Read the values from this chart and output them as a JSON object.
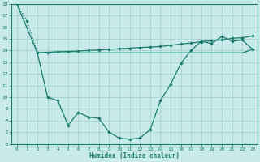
{
  "xlabel": "Humidex (Indice chaleur)",
  "line1_x": [
    0,
    1,
    2
  ],
  "line1_y": [
    18,
    16.5,
    13.8
  ],
  "line2_x": [
    0,
    2,
    3,
    4,
    5,
    6,
    7,
    8,
    9,
    10,
    11,
    12,
    13,
    14,
    15,
    16,
    17,
    18,
    19,
    20,
    21,
    22,
    23
  ],
  "line2_y": [
    18,
    13.8,
    10.0,
    9.7,
    7.6,
    8.7,
    8.3,
    8.2,
    7.0,
    6.5,
    6.4,
    6.5,
    7.2,
    9.7,
    11.1,
    12.9,
    14.0,
    14.8,
    14.6,
    15.2,
    14.8,
    14.9,
    14.1
  ],
  "line3_x": [
    2,
    3,
    4,
    5,
    6,
    7,
    8,
    9,
    10,
    11,
    12,
    13,
    14,
    15,
    16,
    17,
    18,
    19,
    20,
    21,
    22,
    23
  ],
  "line3_y": [
    13.8,
    13.85,
    13.9,
    13.92,
    13.95,
    14.0,
    14.05,
    14.1,
    14.15,
    14.2,
    14.25,
    14.3,
    14.35,
    14.45,
    14.55,
    14.65,
    14.75,
    14.85,
    14.9,
    15.05,
    15.1,
    15.25
  ],
  "line4_x": [
    2,
    3,
    4,
    5,
    6,
    7,
    8,
    9,
    10,
    11,
    12,
    13,
    14,
    15,
    16,
    17,
    18,
    19,
    20,
    21,
    22,
    23
  ],
  "line4_y": [
    13.8,
    13.8,
    13.8,
    13.8,
    13.8,
    13.8,
    13.8,
    13.8,
    13.8,
    13.8,
    13.8,
    13.8,
    13.8,
    13.8,
    13.8,
    13.8,
    13.8,
    13.8,
    13.8,
    13.8,
    13.8,
    14.1
  ],
  "color": "#1a7a6e",
  "bg_color": "#c8eae8",
  "grid_color": "#a0ceca",
  "ylim": [
    6,
    18
  ],
  "xlim": [
    -0.5,
    23.5
  ],
  "yticks": [
    6,
    7,
    8,
    9,
    10,
    11,
    12,
    13,
    14,
    15,
    16,
    17,
    18
  ],
  "xticks": [
    0,
    1,
    2,
    3,
    4,
    5,
    6,
    7,
    8,
    9,
    10,
    11,
    12,
    13,
    14,
    15,
    16,
    17,
    18,
    19,
    20,
    21,
    22,
    23
  ]
}
